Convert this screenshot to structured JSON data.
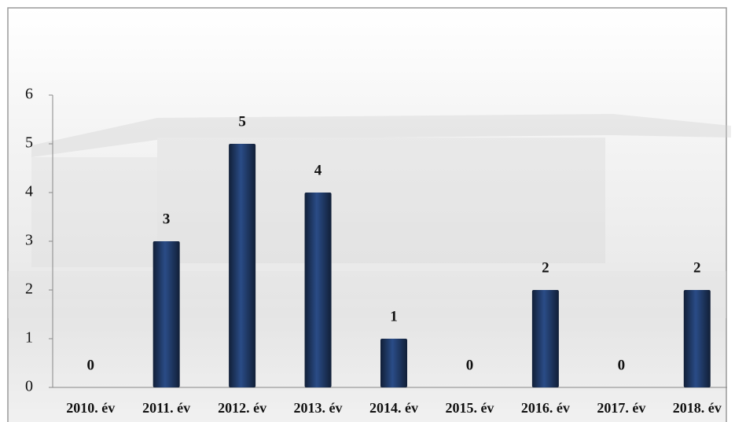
{
  "chart_data": {
    "type": "bar",
    "categories": [
      "2010. év",
      "2011. év",
      "2012. év",
      "2013. év",
      "2014. év",
      "2015. év",
      "2016. év",
      "2017. év",
      "2018. év"
    ],
    "values": [
      0,
      3,
      5,
      4,
      1,
      0,
      2,
      0,
      2
    ],
    "color": "#1f3864",
    "ylim": [
      0,
      6
    ],
    "yticks": [
      0,
      1,
      2,
      3,
      4,
      5,
      6
    ]
  }
}
